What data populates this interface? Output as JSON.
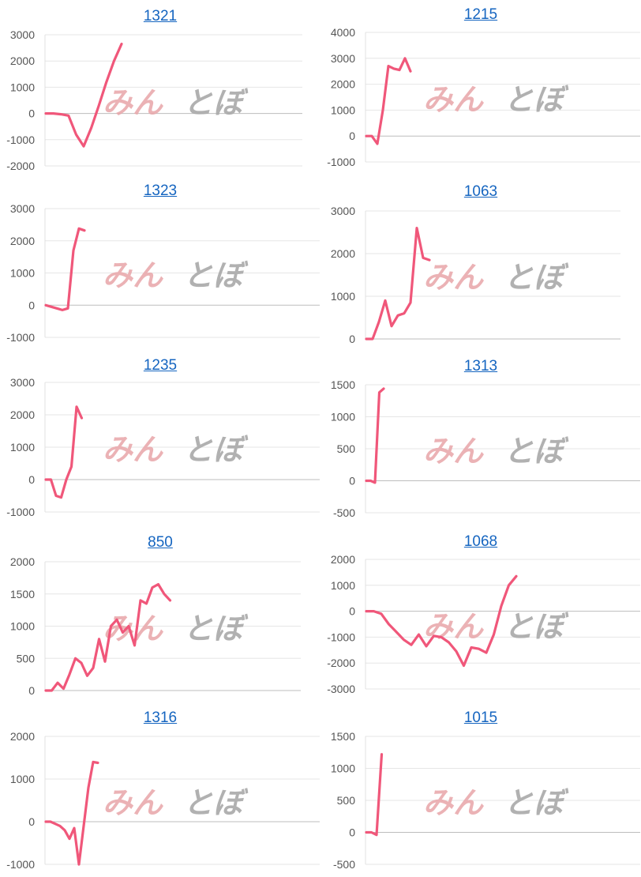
{
  "colors": {
    "series": "#f0577a",
    "title_link": "#1565c0",
    "watermark_left": "#e8a4a8",
    "watermark_right": "#a8a8a8"
  },
  "watermark": {
    "left": "みん",
    "right": "とぼ"
  },
  "chart_data": [
    {
      "type": "line",
      "title": "1321",
      "ylim": [
        -2000,
        3000
      ],
      "yticks": [
        -2000,
        -1000,
        0,
        1000,
        2000,
        3000
      ],
      "series": [
        {
          "values": [
            0,
            0,
            -30,
            -80,
            -800,
            -1250,
            -550,
            300,
            1200,
            2000,
            2650
          ]
        }
      ]
    },
    {
      "type": "line",
      "title": "1215",
      "ylim": [
        -1000,
        4000
      ],
      "yticks": [
        -1000,
        0,
        1000,
        2000,
        3000,
        4000
      ],
      "series": [
        {
          "values": [
            0,
            0,
            -300,
            1000,
            2700,
            2600,
            2550,
            3000,
            2500
          ]
        }
      ]
    },
    {
      "type": "line",
      "title": "1323",
      "ylim": [
        -1000,
        3000
      ],
      "yticks": [
        -1000,
        0,
        1000,
        2000,
        3000
      ],
      "series": [
        {
          "values": [
            0,
            -50,
            -100,
            -150,
            -100,
            1700,
            2380,
            2320
          ]
        }
      ]
    },
    {
      "type": "line",
      "title": "1063",
      "ylim": [
        0,
        3000
      ],
      "yticks": [
        0,
        1000,
        2000,
        3000
      ],
      "series": [
        {
          "values": [
            0,
            0,
            400,
            900,
            300,
            550,
            600,
            850,
            2600,
            1900,
            1850
          ]
        }
      ]
    },
    {
      "type": "line",
      "title": "1235",
      "ylim": [
        -1000,
        3000
      ],
      "yticks": [
        -1000,
        0,
        1000,
        2000,
        3000
      ],
      "series": [
        {
          "values": [
            0,
            0,
            -500,
            -550,
            0,
            400,
            2250,
            1900
          ]
        }
      ]
    },
    {
      "type": "line",
      "title": "1313",
      "ylim": [
        -500,
        1500
      ],
      "yticks": [
        -500,
        0,
        500,
        1000,
        1500
      ],
      "series": [
        {
          "values": [
            0,
            0,
            -30,
            1380,
            1440
          ]
        }
      ]
    },
    {
      "type": "line",
      "title": "850",
      "ylim": [
        0,
        2000
      ],
      "yticks": [
        0,
        500,
        1000,
        1500,
        2000
      ],
      "series": [
        {
          "values": [
            0,
            0,
            120,
            30,
            250,
            500,
            430,
            230,
            350,
            800,
            450,
            1000,
            1100,
            900,
            1000,
            700,
            1400,
            1350,
            1600,
            1650,
            1500,
            1400
          ]
        }
      ]
    },
    {
      "type": "line",
      "title": "1068",
      "ylim": [
        -3000,
        2000
      ],
      "yticks": [
        -3000,
        -2000,
        -1000,
        0,
        1000,
        2000
      ],
      "series": [
        {
          "values": [
            0,
            0,
            -100,
            -500,
            -800,
            -1100,
            -1300,
            -900,
            -1350,
            -950,
            -1000,
            -1200,
            -1550,
            -2100,
            -1400,
            -1450,
            -1600,
            -900,
            200,
            1000,
            1350
          ]
        }
      ]
    },
    {
      "type": "line",
      "title": "1316",
      "ylim": [
        -1000,
        2000
      ],
      "yticks": [
        -1000,
        0,
        1000,
        2000
      ],
      "series": [
        {
          "values": [
            0,
            0,
            -50,
            -100,
            -200,
            -400,
            -150,
            -1000,
            -100,
            800,
            1400,
            1380
          ]
        }
      ]
    },
    {
      "type": "line",
      "title": "1015",
      "ylim": [
        -500,
        1500
      ],
      "yticks": [
        -500,
        0,
        500,
        1000,
        1500
      ],
      "series": [
        {
          "values": [
            0,
            0,
            -40,
            1220
          ]
        }
      ]
    }
  ]
}
